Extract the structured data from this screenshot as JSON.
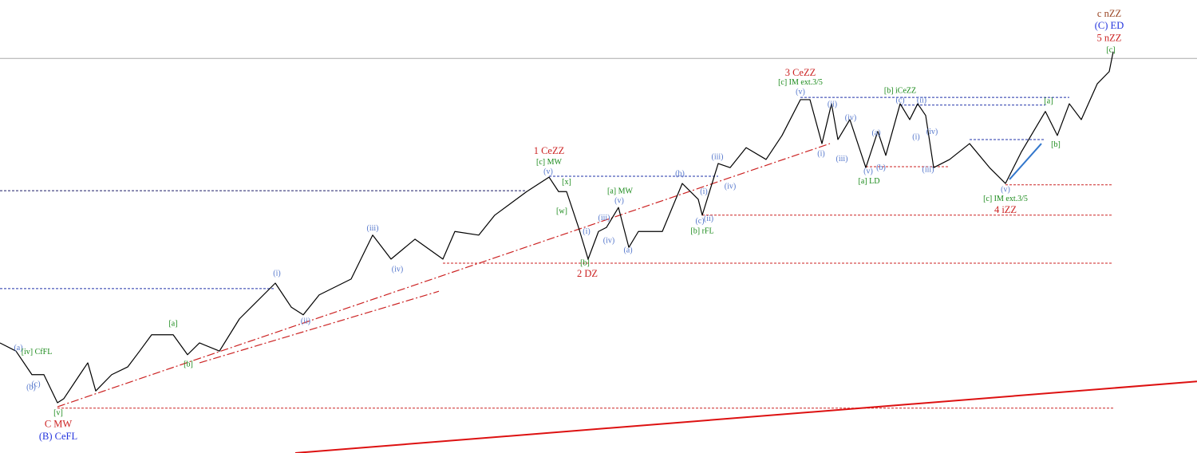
{
  "chart_data": {
    "type": "line",
    "xlim": [
      0,
      1500
    ],
    "ylim": [
      0,
      100
    ],
    "color": "#000000",
    "x": [
      0,
      20,
      40,
      55,
      72,
      80,
      100,
      110,
      120,
      140,
      160,
      175,
      190,
      217,
      235,
      250,
      275,
      300,
      345,
      365,
      380,
      400,
      440,
      467,
      490,
      520,
      555,
      570,
      600,
      620,
      660,
      688,
      700,
      710,
      725,
      737,
      750,
      760,
      775,
      788,
      800,
      830,
      855,
      875,
      880,
      900,
      915,
      935,
      960,
      980,
      1003,
      1015,
      1030,
      1042,
      1050,
      1065,
      1085,
      1100,
      1110,
      1128,
      1140,
      1150,
      1160,
      1170,
      1190,
      1215,
      1240,
      1260,
      1280,
      1310,
      1325,
      1340,
      1355,
      1375,
      1390,
      1395
    ],
    "values": [
      24.3,
      22.5,
      17.3,
      17.3,
      11.1,
      12.0,
      17.3,
      19.9,
      13.7,
      17.3,
      19.0,
      22.5,
      26.1,
      26.1,
      21.7,
      24.3,
      22.5,
      29.6,
      37.5,
      32.2,
      30.5,
      34.9,
      38.4,
      48.1,
      42.8,
      47.2,
      42.8,
      48.9,
      48.1,
      52.5,
      57.7,
      60.9,
      57.7,
      57.7,
      49.8,
      42.8,
      48.9,
      49.8,
      54.2,
      45.4,
      48.9,
      48.9,
      59.5,
      56.0,
      52.5,
      63.9,
      63.0,
      67.4,
      64.8,
      70.1,
      78.0,
      78.0,
      68.3,
      77.1,
      69.2,
      73.6,
      63.0,
      71.0,
      65.7,
      77.1,
      73.6,
      77.1,
      74.5,
      63.0,
      64.8,
      68.3,
      63.0,
      59.5,
      66.5,
      75.4,
      70.1,
      77.1,
      73.6,
      81.5,
      84.2,
      88.6
    ],
    "levels": [
      {
        "y": 87.1,
        "x": [
          0,
          1500
        ],
        "color": "#aaaaaa",
        "dash": false
      },
      {
        "y": 57.9,
        "x": [
          0,
          660
        ],
        "color": "#1a1a66",
        "dash": true
      },
      {
        "y": 36.3,
        "x": [
          0,
          345
        ],
        "color": "#2233aa",
        "dash": true
      },
      {
        "y": 9.9,
        "x": [
          72,
          1395
        ],
        "color": "#cc2222",
        "dash": true
      },
      {
        "y": 41.9,
        "x": [
          555,
          1395
        ],
        "color": "#cc2222",
        "dash": true
      },
      {
        "y": 52.5,
        "x": [
          880,
          1395
        ],
        "color": "#cc2222",
        "dash": true
      },
      {
        "y": 59.2,
        "x": [
          1260,
          1395
        ],
        "color": "#cc2222",
        "dash": true
      },
      {
        "y": 63.2,
        "x": [
          1085,
          1190
        ],
        "color": "#cc2222",
        "dash": true
      },
      {
        "y": 61.1,
        "x": [
          688,
          900
        ],
        "color": "#2233aa",
        "dash": true
      },
      {
        "y": 78.5,
        "x": [
          1003,
          1340
        ],
        "color": "#2233aa",
        "dash": true
      },
      {
        "y": 76.8,
        "x": [
          1128,
          1310
        ],
        "color": "#2233aa",
        "dash": true
      },
      {
        "y": 69.2,
        "x": [
          1215,
          1310
        ],
        "color": "#2233aa",
        "dash": true
      }
    ],
    "trendlines": [
      {
        "x": [
          72,
          1040
        ],
        "y": [
          10.2,
          68.3
        ],
        "color": "#cc2222",
        "dash": true,
        "width": 1.2
      },
      {
        "x": [
          250,
          550
        ],
        "y": [
          19.9,
          35.7
        ],
        "color": "#cc2222",
        "dash": true,
        "width": 1.2
      },
      {
        "x": [
          370,
          1500
        ],
        "y": [
          0,
          15.8
        ],
        "color": "#dd1111",
        "dash": false,
        "width": 2
      },
      {
        "x": [
          1265,
          1305
        ],
        "y": [
          60.4,
          68.3
        ],
        "color": "#3377cc",
        "dash": false,
        "width": 2
      }
    ],
    "annotations": [
      {
        "text": "c nZZ",
        "color": "#994422",
        "x": 1390,
        "y": 96.8
      },
      {
        "text": "(C) ED",
        "color": "#2233dd",
        "x": 1390,
        "y": 94.2
      },
      {
        "text": "5 nZZ",
        "color": "#cc2222",
        "x": 1390,
        "y": 91.4
      },
      {
        "text": "[c]",
        "color": "#1a8a1a",
        "x": 1392,
        "y": 88.9
      },
      {
        "text": "3 CeZZ",
        "color": "#cc2222",
        "x": 1003,
        "y": 83.8
      },
      {
        "text": "[c] IM ext.3/5",
        "color": "#1a8a1a",
        "x": 1003,
        "y": 81.7
      },
      {
        "text": "(v)",
        "color": "#5577cc",
        "x": 1003,
        "y": 79.6
      },
      {
        "text": "[b] iCeZZ",
        "color": "#1a8a1a",
        "x": 1128,
        "y": 79.9
      },
      {
        "text": "(c)",
        "color": "#5577cc",
        "x": 1128,
        "y": 77.8
      },
      {
        "text": "(ii)",
        "color": "#5577cc",
        "x": 1155,
        "y": 77.8
      },
      {
        "text": "(ii)",
        "color": "#5577cc",
        "x": 1043,
        "y": 76.9
      },
      {
        "text": "(iv)",
        "color": "#5577cc",
        "x": 1066,
        "y": 73.9
      },
      {
        "text": "(a)",
        "color": "#5577cc",
        "x": 1098,
        "y": 70.6
      },
      {
        "text": "(i)",
        "color": "#5577cc",
        "x": 1148,
        "y": 69.7
      },
      {
        "text": "(iv)",
        "color": "#5577cc",
        "x": 1168,
        "y": 70.8
      },
      {
        "text": "[a]",
        "color": "#1a8a1a",
        "x": 1314,
        "y": 77.6
      },
      {
        "text": "[b]",
        "color": "#1a8a1a",
        "x": 1323,
        "y": 68.0
      },
      {
        "text": "(i)",
        "color": "#5577cc",
        "x": 1029,
        "y": 66.0
      },
      {
        "text": "(iii)",
        "color": "#5577cc",
        "x": 1055,
        "y": 64.8
      },
      {
        "text": "(v)",
        "color": "#5577cc",
        "x": 1088,
        "y": 62.1
      },
      {
        "text": "(b)",
        "color": "#5577cc",
        "x": 1104,
        "y": 62.9
      },
      {
        "text": "(iii)",
        "color": "#5577cc",
        "x": 1163,
        "y": 62.5
      },
      {
        "text": "[a] LD",
        "color": "#1a8a1a",
        "x": 1089,
        "y": 59.9
      },
      {
        "text": "(v)",
        "color": "#5577cc",
        "x": 1260,
        "y": 58.1
      },
      {
        "text": "[c] IM ext.3/5",
        "color": "#1a8a1a",
        "x": 1260,
        "y": 56.0
      },
      {
        "text": "4 iZZ",
        "color": "#cc2222",
        "x": 1260,
        "y": 53.5
      },
      {
        "text": "1 CeZZ",
        "color": "#cc2222",
        "x": 688,
        "y": 66.5
      },
      {
        "text": "[c] MW",
        "color": "#1a8a1a",
        "x": 688,
        "y": 64.1
      },
      {
        "text": "(v)",
        "color": "#5577cc",
        "x": 687,
        "y": 62.0
      },
      {
        "text": "[x]",
        "color": "#1a8a1a",
        "x": 710,
        "y": 59.7
      },
      {
        "text": "[w]",
        "color": "#1a8a1a",
        "x": 704,
        "y": 53.3
      },
      {
        "text": "[a] MW",
        "color": "#1a8a1a",
        "x": 777,
        "y": 57.7
      },
      {
        "text": "(v)",
        "color": "#5577cc",
        "x": 776,
        "y": 55.6
      },
      {
        "text": "(iii)",
        "color": "#5577cc",
        "x": 757,
        "y": 51.8
      },
      {
        "text": "(i)",
        "color": "#5577cc",
        "x": 735,
        "y": 48.8
      },
      {
        "text": "(iv)",
        "color": "#5577cc",
        "x": 763,
        "y": 46.8
      },
      {
        "text": "(a)",
        "color": "#5577cc",
        "x": 787,
        "y": 44.7
      },
      {
        "text": "(b)",
        "color": "#5577cc",
        "x": 852,
        "y": 61.6
      },
      {
        "text": "(i)",
        "color": "#5577cc",
        "x": 882,
        "y": 57.6
      },
      {
        "text": "(c)",
        "color": "#5577cc",
        "x": 877,
        "y": 51.1
      },
      {
        "text": "(ii)",
        "color": "#5577cc",
        "x": 888,
        "y": 51.6
      },
      {
        "text": "[b] rFL",
        "color": "#1a8a1a",
        "x": 880,
        "y": 48.9
      },
      {
        "text": "(iii)",
        "color": "#5577cc",
        "x": 899,
        "y": 65.3
      },
      {
        "text": "(iv)",
        "color": "#5577cc",
        "x": 915,
        "y": 58.8
      },
      {
        "text": "[b]",
        "color": "#1a8a1a",
        "x": 733,
        "y": 41.9
      },
      {
        "text": "2 DZ",
        "color": "#cc2222",
        "x": 736,
        "y": 39.4
      },
      {
        "text": "(iii)",
        "color": "#5577cc",
        "x": 467,
        "y": 49.5
      },
      {
        "text": "(iv)",
        "color": "#5577cc",
        "x": 498,
        "y": 40.5
      },
      {
        "text": "(i)",
        "color": "#5577cc",
        "x": 347,
        "y": 39.6
      },
      {
        "text": "(ii)",
        "color": "#5577cc",
        "x": 383,
        "y": 29.0
      },
      {
        "text": "[a]",
        "color": "#1a8a1a",
        "x": 217,
        "y": 28.5
      },
      {
        "text": "[b]",
        "color": "#1a8a1a",
        "x": 236,
        "y": 19.5
      },
      {
        "text": "(a)",
        "color": "#5577cc",
        "x": 23,
        "y": 23.1
      },
      {
        "text": "[iv] CfFL",
        "color": "#1a8a1a",
        "x": 46,
        "y": 22.2
      },
      {
        "text": "(c)",
        "color": "#5577cc",
        "x": 45,
        "y": 15.1
      },
      {
        "text": "(b)",
        "color": "#5577cc",
        "x": 39,
        "y": 14.4
      },
      {
        "text": "[v]",
        "color": "#1a8a1a",
        "x": 73,
        "y": 8.8
      },
      {
        "text": "C MW",
        "color": "#cc2222",
        "x": 73,
        "y": 6.2
      },
      {
        "text": "(B) CeFL",
        "color": "#2233dd",
        "x": 73,
        "y": 3.5
      }
    ]
  }
}
